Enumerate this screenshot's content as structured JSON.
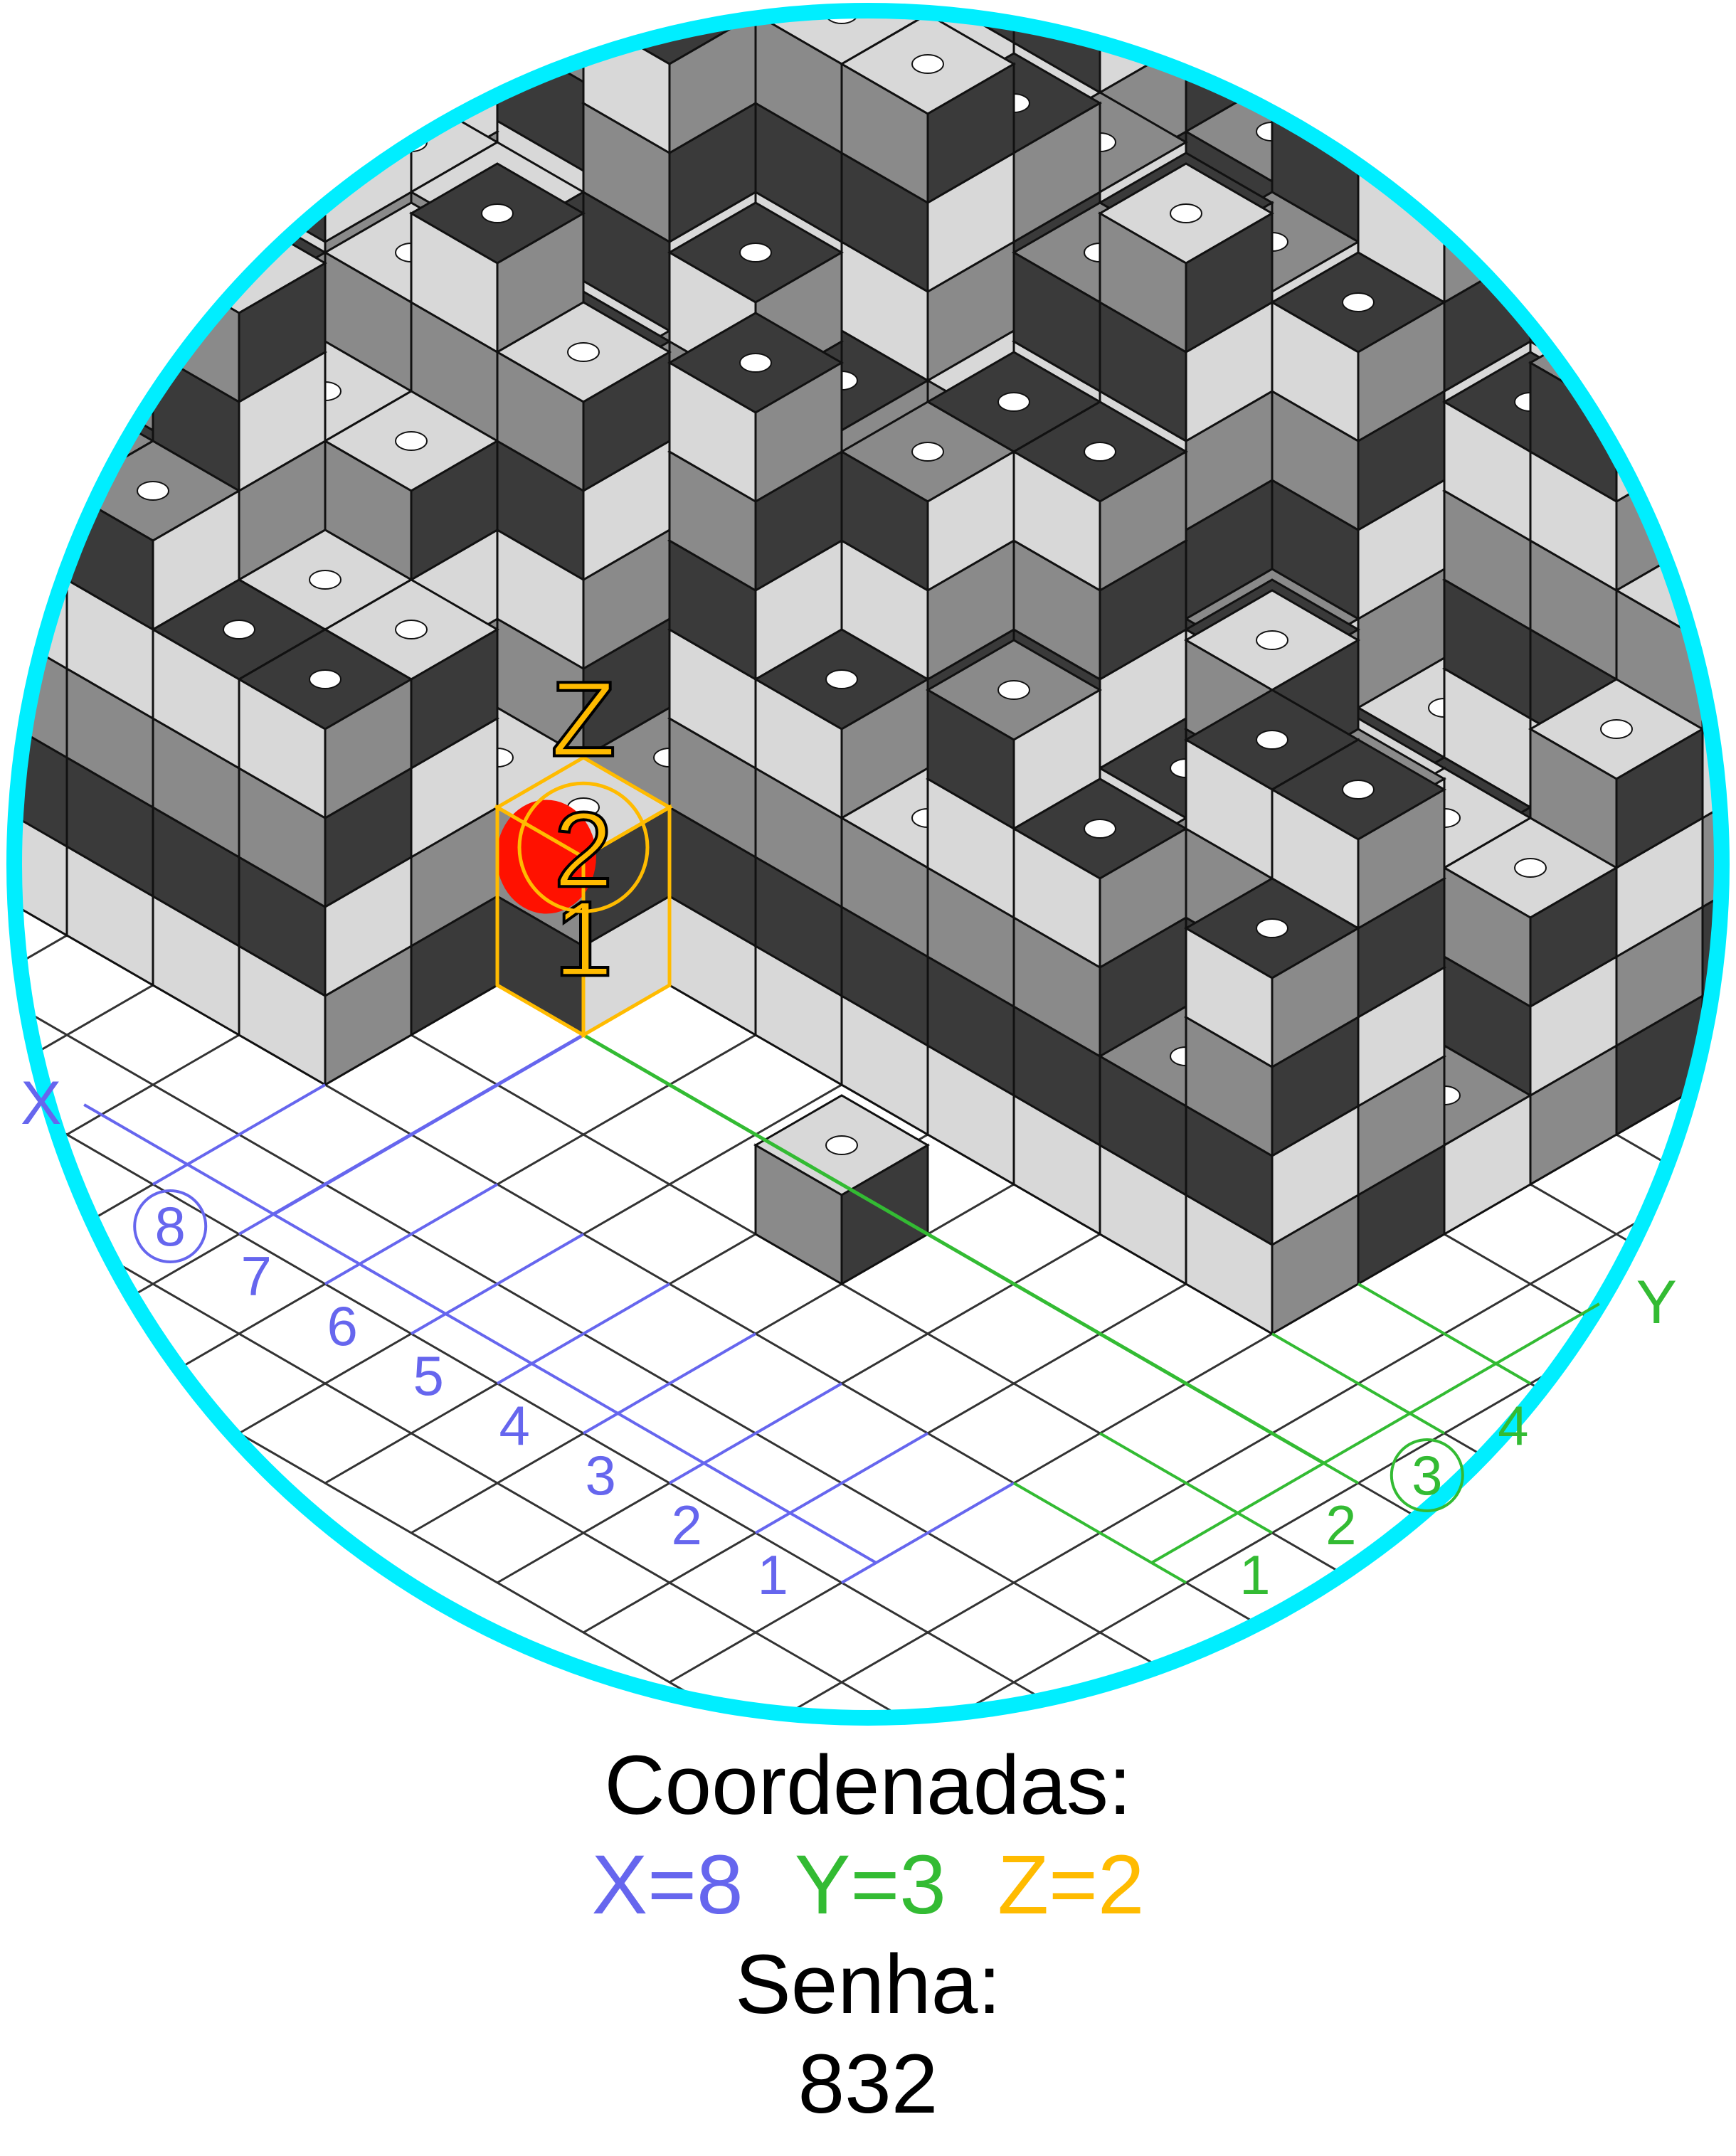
{
  "axes": {
    "x": {
      "label": "X",
      "ticks": [
        "1",
        "2",
        "3",
        "4",
        "5",
        "6",
        "7",
        "8"
      ],
      "selected": "8",
      "color": "#6666ee"
    },
    "y": {
      "label": "Y",
      "ticks": [
        "1",
        "2",
        "3",
        "4"
      ],
      "selected": "3",
      "color": "#33bb33"
    },
    "z": {
      "label": "Z",
      "ticks": [
        "1",
        "2"
      ],
      "selected": "2",
      "color": "#ffbb00"
    }
  },
  "colors": {
    "ring": "#00eeff",
    "highlight": "#ff1100",
    "tile_dark": "#3a3a3a",
    "tile_mid": "#8a8a8a",
    "tile_light": "#d8d8d8",
    "floor": "#ffffff"
  },
  "caption": {
    "heading": "Coordenadas:",
    "x_value": "X=8",
    "y_value": "Y=3",
    "z_value": "Z=2",
    "password_label": "Senha:",
    "password": "832"
  }
}
